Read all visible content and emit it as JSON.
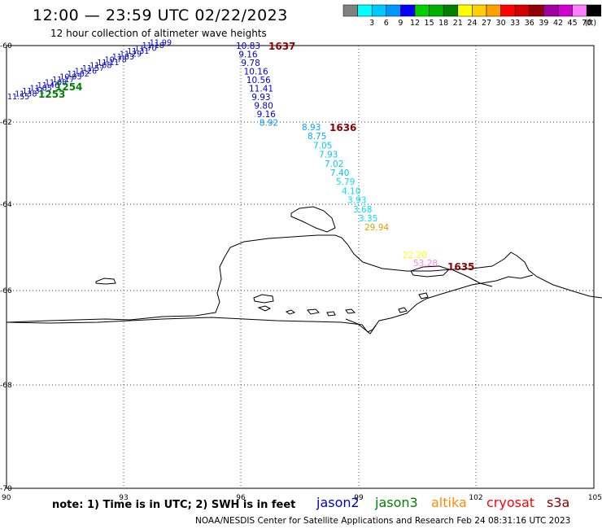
{
  "header": {
    "title": "12:00 — 23:59 UTC 02/22/2023",
    "subtitle": "12 hour collection of altimeter wave heights"
  },
  "legend": {
    "units": "(ft)",
    "bins": [
      {
        "label": "",
        "color": "#808080"
      },
      {
        "label": "3",
        "color": "#00ffff"
      },
      {
        "label": "6",
        "color": "#00c8ff"
      },
      {
        "label": "9",
        "color": "#0096ff"
      },
      {
        "label": "12",
        "color": "#0000ff"
      },
      {
        "label": "15",
        "color": "#00d000"
      },
      {
        "label": "18",
        "color": "#00b000"
      },
      {
        "label": "21",
        "color": "#008000"
      },
      {
        "label": "24",
        "color": "#ffff00"
      },
      {
        "label": "27",
        "color": "#ffd000"
      },
      {
        "label": "30",
        "color": "#ffa000"
      },
      {
        "label": "33",
        "color": "#ff0000"
      },
      {
        "label": "36",
        "color": "#d00000"
      },
      {
        "label": "39",
        "color": "#900000"
      },
      {
        "label": "42",
        "color": "#a000a0"
      },
      {
        "label": "45",
        "color": "#d000d0"
      },
      {
        "label": "70",
        "color": "#ff80ff"
      },
      {
        "label": "",
        "color": "#000000"
      }
    ]
  },
  "axes": {
    "lon_ticks": [
      "90",
      "93",
      "96",
      "99",
      "102",
      "105"
    ],
    "lat_ticks": [
      "-60",
      "-62",
      "-64",
      "-66",
      "-68",
      "-70"
    ]
  },
  "tracks": [
    {
      "satellite": "jason2",
      "time_label": "1637",
      "time_color": "#8b0000",
      "points": [
        {
          "v": "10.83",
          "c": "#0000cd"
        },
        {
          "v": "9.16",
          "c": "#0000cd"
        },
        {
          "v": "9.78",
          "c": "#0000cd"
        },
        {
          "v": "10.16",
          "c": "#0000cd"
        },
        {
          "v": "10.56",
          "c": "#0000cd"
        },
        {
          "v": "11.41",
          "c": "#0000cd"
        },
        {
          "v": "9.93",
          "c": "#0000cd"
        },
        {
          "v": "9.80",
          "c": "#0000cd"
        },
        {
          "v": "9.16",
          "c": "#0000cd"
        },
        {
          "v": "8.92",
          "c": "#0096ff"
        }
      ]
    },
    {
      "satellite": "jason2",
      "time_label": "1636",
      "time_color": "#8b0000",
      "points": [
        {
          "v": "8.93",
          "c": "#00aaff"
        },
        {
          "v": "8.75",
          "c": "#00aaff"
        },
        {
          "v": "7.05",
          "c": "#00c8ff"
        },
        {
          "v": "7.93",
          "c": "#00c8ff"
        },
        {
          "v": "7.02",
          "c": "#00c8ff"
        },
        {
          "v": "7.40",
          "c": "#00c8ff"
        },
        {
          "v": "5.79",
          "c": "#00e0ff"
        },
        {
          "v": "4.10",
          "c": "#00e0ff"
        },
        {
          "v": "3.93",
          "c": "#00e0ff"
        },
        {
          "v": "3.68",
          "c": "#00e0ff"
        },
        {
          "v": "3.35",
          "c": "#00e0ff"
        },
        {
          "v": "29.94",
          "c": "#e0a000"
        }
      ]
    },
    {
      "satellite": "jason2",
      "time_label": "1635",
      "time_color": "#8b0000",
      "points": [
        {
          "v": "22.20",
          "c": "#ffff00"
        },
        {
          "v": "53.28",
          "c": "#ff80ff"
        }
      ]
    },
    {
      "satellite": "jason3",
      "time_label": "1254",
      "time_color": "#008000",
      "points": [
        {
          "v": "11.55",
          "c": "#0000cd"
        },
        {
          "v": "11.38",
          "c": "#0000cd"
        },
        {
          "v": "11.31",
          "c": "#0000cd"
        },
        {
          "v": "11.05",
          "c": "#0000cd"
        },
        {
          "v": "11.46",
          "c": "#0000cd"
        },
        {
          "v": "11.08",
          "c": "#0000cd"
        },
        {
          "v": "11.17",
          "c": "#0000cd"
        },
        {
          "v": "10.95",
          "c": "#0000cd"
        },
        {
          "v": "11.02",
          "c": "#0000cd"
        },
        {
          "v": "11.26",
          "c": "#0000cd"
        },
        {
          "v": "11.57",
          "c": "#0000cd"
        },
        {
          "v": "11.08",
          "c": "#0000cd"
        },
        {
          "v": "11.11",
          "c": "#0000cd"
        },
        {
          "v": "10.78",
          "c": "#0000cd"
        },
        {
          "v": "11.83",
          "c": "#0000cd"
        },
        {
          "v": "11.29",
          "c": "#0000cd"
        },
        {
          "v": "11.31",
          "c": "#0000cd"
        },
        {
          "v": "11.70",
          "c": "#0000cd"
        },
        {
          "v": "11.18",
          "c": "#0000cd"
        },
        {
          "v": "11.99",
          "c": "#0000cd"
        }
      ]
    },
    {
      "satellite": "jason3",
      "time_label": "1253",
      "time_color": "#008000",
      "points": []
    }
  ],
  "footer": {
    "note": "note:  1) Time is in UTC; 2) SWH is in feet",
    "satellites": [
      {
        "name": "jason2",
        "color": "#0000cd"
      },
      {
        "name": "jason3",
        "color": "#008000"
      },
      {
        "name": "altika",
        "color": "#ff8c00"
      },
      {
        "name": "cryosat",
        "color": "#ff0000"
      },
      {
        "name": "s3a",
        "color": "#8b0000"
      }
    ],
    "credit": "NOAA/NESDIS Center for Satellite Applications and Research    Feb 24 08:31:16 UTC 2023"
  }
}
